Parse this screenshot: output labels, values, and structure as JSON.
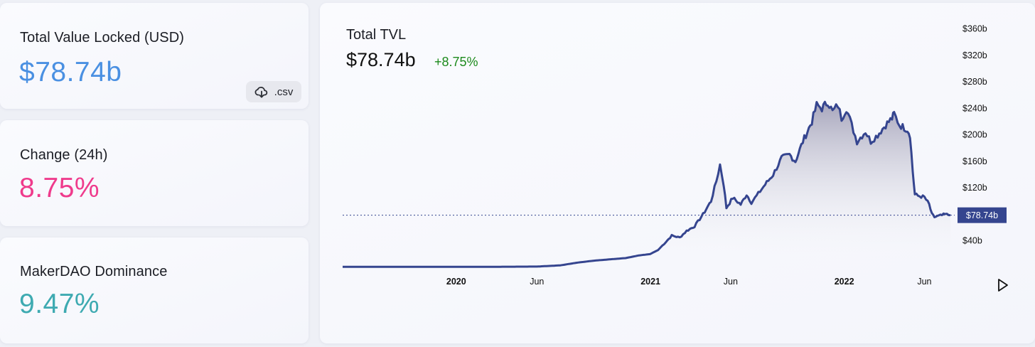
{
  "stats": {
    "tvl": {
      "label": "Total Value Locked (USD)",
      "value": "$78.74b",
      "color": "#4a90e2"
    },
    "change": {
      "label": "Change (24h)",
      "value": "8.75%",
      "color": "#ef3b8c"
    },
    "dominance": {
      "label": "MakerDAO Dominance",
      "value": "9.47%",
      "color": "#3eaab1"
    }
  },
  "csv_button": {
    "label": ".csv",
    "icon": "download-cloud-icon"
  },
  "chart_header": {
    "title": "Total TVL",
    "value": "$78.74b",
    "change": "+8.75%",
    "change_color": "#1c8a1c"
  },
  "chart_data": {
    "type": "area",
    "title": "Total TVL",
    "ylim": [
      0,
      380
    ],
    "y_unit": "billion USD",
    "y_ticks": [
      {
        "value": 40,
        "label": "$40b"
      },
      {
        "value": 120,
        "label": "$120b"
      },
      {
        "value": 160,
        "label": "$160b"
      },
      {
        "value": 200,
        "label": "$200b"
      },
      {
        "value": 240,
        "label": "$240b"
      },
      {
        "value": 280,
        "label": "$280b"
      },
      {
        "value": 320,
        "label": "$320b"
      },
      {
        "value": 360,
        "label": "$360b"
      }
    ],
    "x_ticks": [
      {
        "date": "2020-01-01",
        "label": "2020",
        "bold": true
      },
      {
        "date": "2020-06-01",
        "label": "Jun",
        "bold": false
      },
      {
        "date": "2021-01-01",
        "label": "2021",
        "bold": true
      },
      {
        "date": "2021-06-01",
        "label": "Jun",
        "bold": false
      },
      {
        "date": "2022-01-01",
        "label": "2022",
        "bold": true
      },
      {
        "date": "2022-06-01",
        "label": "Jun",
        "bold": false
      }
    ],
    "x_range": [
      "2019-06-01",
      "2022-07-20"
    ],
    "current": {
      "value": 78.74,
      "label": "$78.74b"
    },
    "line_color": "#35458f",
    "series": [
      {
        "points": [
          [
            "2019-06-01",
            0.8
          ],
          [
            "2019-09-01",
            0.8
          ],
          [
            "2019-12-01",
            0.7
          ],
          [
            "2020-03-01",
            0.8
          ],
          [
            "2020-06-01",
            1.2
          ],
          [
            "2020-07-15",
            3
          ],
          [
            "2020-08-15",
            7
          ],
          [
            "2020-09-15",
            10
          ],
          [
            "2020-10-15",
            12
          ],
          [
            "2020-11-15",
            14
          ],
          [
            "2020-12-10",
            18
          ],
          [
            "2020-12-31",
            20
          ],
          [
            "2021-01-15",
            26
          ],
          [
            "2021-02-01",
            40
          ],
          [
            "2021-02-10",
            48
          ],
          [
            "2021-02-25",
            45
          ],
          [
            "2021-03-10",
            55
          ],
          [
            "2021-03-25",
            62
          ],
          [
            "2021-04-10",
            80
          ],
          [
            "2021-04-25",
            100
          ],
          [
            "2021-05-05",
            130
          ],
          [
            "2021-05-12",
            155
          ],
          [
            "2021-05-19",
            125
          ],
          [
            "2021-05-24",
            90
          ],
          [
            "2021-06-05",
            105
          ],
          [
            "2021-06-20",
            95
          ],
          [
            "2021-07-01",
            110
          ],
          [
            "2021-07-10",
            98
          ],
          [
            "2021-07-20",
            108
          ],
          [
            "2021-08-05",
            125
          ],
          [
            "2021-08-20",
            140
          ],
          [
            "2021-09-05",
            165
          ],
          [
            "2021-09-20",
            170
          ],
          [
            "2021-10-01",
            160
          ],
          [
            "2021-10-15",
            190
          ],
          [
            "2021-11-01",
            220
          ],
          [
            "2021-11-10",
            245
          ],
          [
            "2021-11-20",
            240
          ],
          [
            "2021-12-01",
            250
          ],
          [
            "2021-12-10",
            235
          ],
          [
            "2021-12-20",
            245
          ],
          [
            "2021-12-27",
            225
          ],
          [
            "2022-01-05",
            240
          ],
          [
            "2022-01-15",
            215
          ],
          [
            "2022-01-25",
            190
          ],
          [
            "2022-02-10",
            205
          ],
          [
            "2022-02-20",
            190
          ],
          [
            "2022-03-05",
            200
          ],
          [
            "2022-03-20",
            215
          ],
          [
            "2022-04-01",
            225
          ],
          [
            "2022-04-05",
            232
          ],
          [
            "2022-04-15",
            215
          ],
          [
            "2022-04-30",
            208
          ],
          [
            "2022-05-05",
            200
          ],
          [
            "2022-05-10",
            145
          ],
          [
            "2022-05-14",
            110
          ],
          [
            "2022-05-20",
            108
          ],
          [
            "2022-06-01",
            106
          ],
          [
            "2022-06-10",
            95
          ],
          [
            "2022-06-15",
            80
          ],
          [
            "2022-06-20",
            76
          ],
          [
            "2022-07-01",
            78
          ],
          [
            "2022-07-10",
            80
          ],
          [
            "2022-07-20",
            78.74
          ]
        ]
      }
    ],
    "reference_line": "dotted horizontal at current value"
  }
}
